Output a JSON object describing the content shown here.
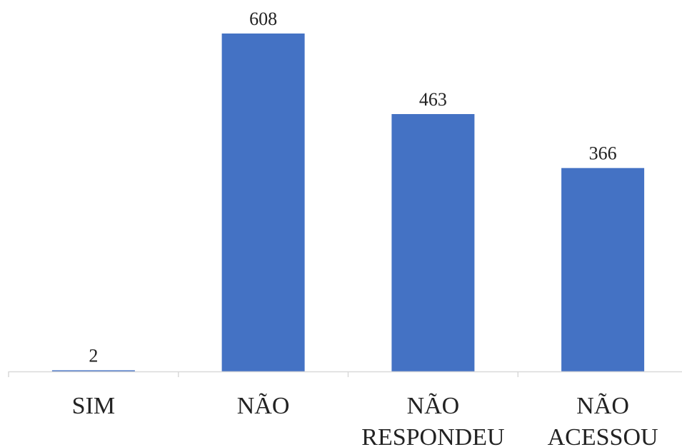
{
  "chart_data": {
    "type": "bar",
    "categories": [
      [
        "SIM"
      ],
      [
        "NÃO"
      ],
      [
        "NÃO",
        "RESPONDEU"
      ],
      [
        "NÃO",
        "ACESSOU"
      ]
    ],
    "values": [
      2,
      608,
      463,
      366
    ],
    "data_labels": [
      "2",
      "608",
      "463",
      "366"
    ],
    "title": "",
    "xlabel": "",
    "ylabel": "",
    "ylim": [
      0,
      608
    ],
    "grid": false,
    "legend": "none",
    "colors": {
      "bar": "#4472C4",
      "axis": "#d9d9d9",
      "text": "#222222"
    }
  }
}
